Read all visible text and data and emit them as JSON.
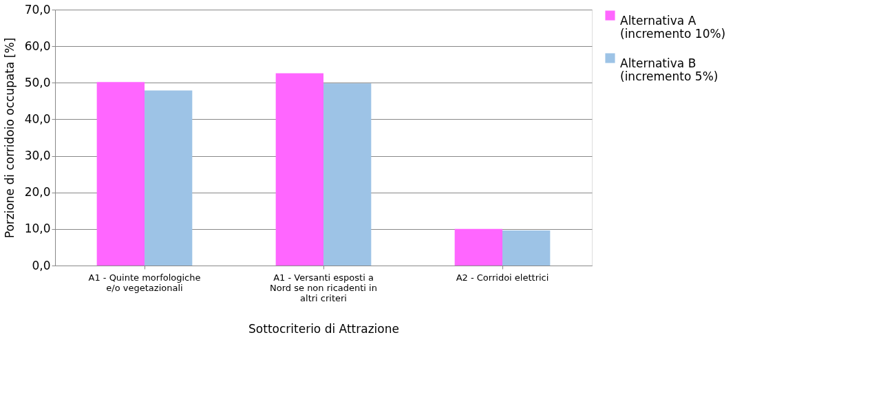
{
  "chart_data": {
    "type": "bar",
    "xlabel": "Sottocriterio di Attrazione",
    "ylabel": "Porzione di corridoio occupata [%]",
    "categories": [
      "A1 - Quinte morfologiche e/o vegetazionali",
      "A1 - Versanti esposti a Nord se non ricadenti in altri criteri",
      "A2 - Corridoi elettrici"
    ],
    "series": [
      {
        "name": "Alternativa A (incremento 10%)",
        "color": "#ff66ff",
        "values": [
          50.2,
          52.6,
          10.0
        ]
      },
      {
        "name": "Alternativa B (incremento 5%)",
        "color": "#9dc3e6",
        "values": [
          47.9,
          49.8,
          9.6
        ]
      }
    ],
    "ylim": [
      0,
      70
    ],
    "yticks": [
      {
        "value": 0,
        "label": "0,0"
      },
      {
        "value": 10,
        "label": "10,0"
      },
      {
        "value": 20,
        "label": "20,0"
      },
      {
        "value": 30,
        "label": "30,0"
      },
      {
        "value": 40,
        "label": "40,0"
      },
      {
        "value": 50,
        "label": "50,0"
      },
      {
        "value": 60,
        "label": "60,0"
      },
      {
        "value": 70,
        "label": "70,0"
      }
    ],
    "grid": "y",
    "legend": "right"
  }
}
